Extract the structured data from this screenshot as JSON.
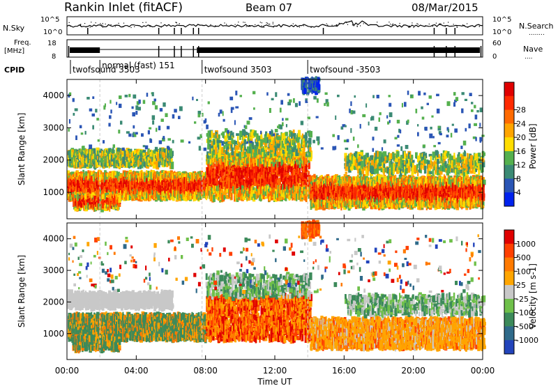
{
  "header": {
    "title": "Rankin Inlet (fitACF)",
    "beam": "Beam 07",
    "date": "08/Mar/2015"
  },
  "chart_data": [
    {
      "type": "line",
      "panel": "noise",
      "left_axis": {
        "labels": [
          "N.Sky"
        ],
        "ticks": [
          "10^5",
          "10^0"
        ]
      },
      "right_axis": {
        "labels": [
          "N.Search",
          "........"
        ],
        "ticks": [
          "10^5",
          "10^0"
        ]
      },
      "y_scale": "log"
    },
    {
      "type": "line",
      "panel": "frequency",
      "left_axis": {
        "labels": [
          "Freq.",
          "[MHz]"
        ],
        "ticks": [
          "18",
          "8"
        ],
        "ylim": [
          8,
          18
        ]
      },
      "right_axis": {
        "labels": [
          "Nave",
          "...."
        ],
        "ticks": [
          "60",
          "0"
        ],
        "ylim": [
          0,
          60
        ]
      }
    },
    {
      "type": "table",
      "panel": "cpid",
      "label": "CPID",
      "segments": [
        {
          "name": "twofsound 3503",
          "start_hour": 0.2
        },
        {
          "name": "normal (fast) 151",
          "start_hour": 1.9
        },
        {
          "name": "twofsound 3503",
          "start_hour": 7.8
        },
        {
          "name": "twofsound -3503",
          "start_hour": 13.9
        }
      ]
    },
    {
      "type": "heatmap",
      "panel": "power",
      "ylabel": "Slant Range [km]",
      "y_ticks": [
        1000,
        2000,
        3000,
        4000
      ],
      "ylim": [
        180,
        4500
      ],
      "colorbar": {
        "label": "Power [dB]",
        "ticks": [
          "4",
          "8",
          "12",
          "16",
          "20",
          "24",
          "28"
        ],
        "colors": [
          "#0022ee",
          "#2a55b5",
          "#3b8a74",
          "#55b04e",
          "#ffdd00",
          "#ffa500",
          "#ff6a00",
          "#ff2a00",
          "#e00000"
        ]
      }
    },
    {
      "type": "heatmap",
      "panel": "velocity",
      "ylabel": "Slant Range [km]",
      "xlabel": "Time UT",
      "x_ticks": [
        "00:00",
        "04:00",
        "08:00",
        "12:00",
        "16:00",
        "20:00",
        "00:00"
      ],
      "y_ticks": [
        1000,
        2000,
        3000,
        4000
      ],
      "ylim": [
        180,
        4500
      ],
      "colorbar": {
        "label": "Velocity [m s-1]",
        "ticks": [
          "1000",
          "500",
          "100",
          "25",
          "-25",
          "-100",
          "-500",
          "-1000"
        ],
        "colors": [
          "#2244bb",
          "#2f6a8a",
          "#3c8a5a",
          "#6fc04a",
          "#c8c8c8",
          "#ffa500",
          "#ff7a00",
          "#ff4000",
          "#e00000"
        ]
      }
    }
  ]
}
